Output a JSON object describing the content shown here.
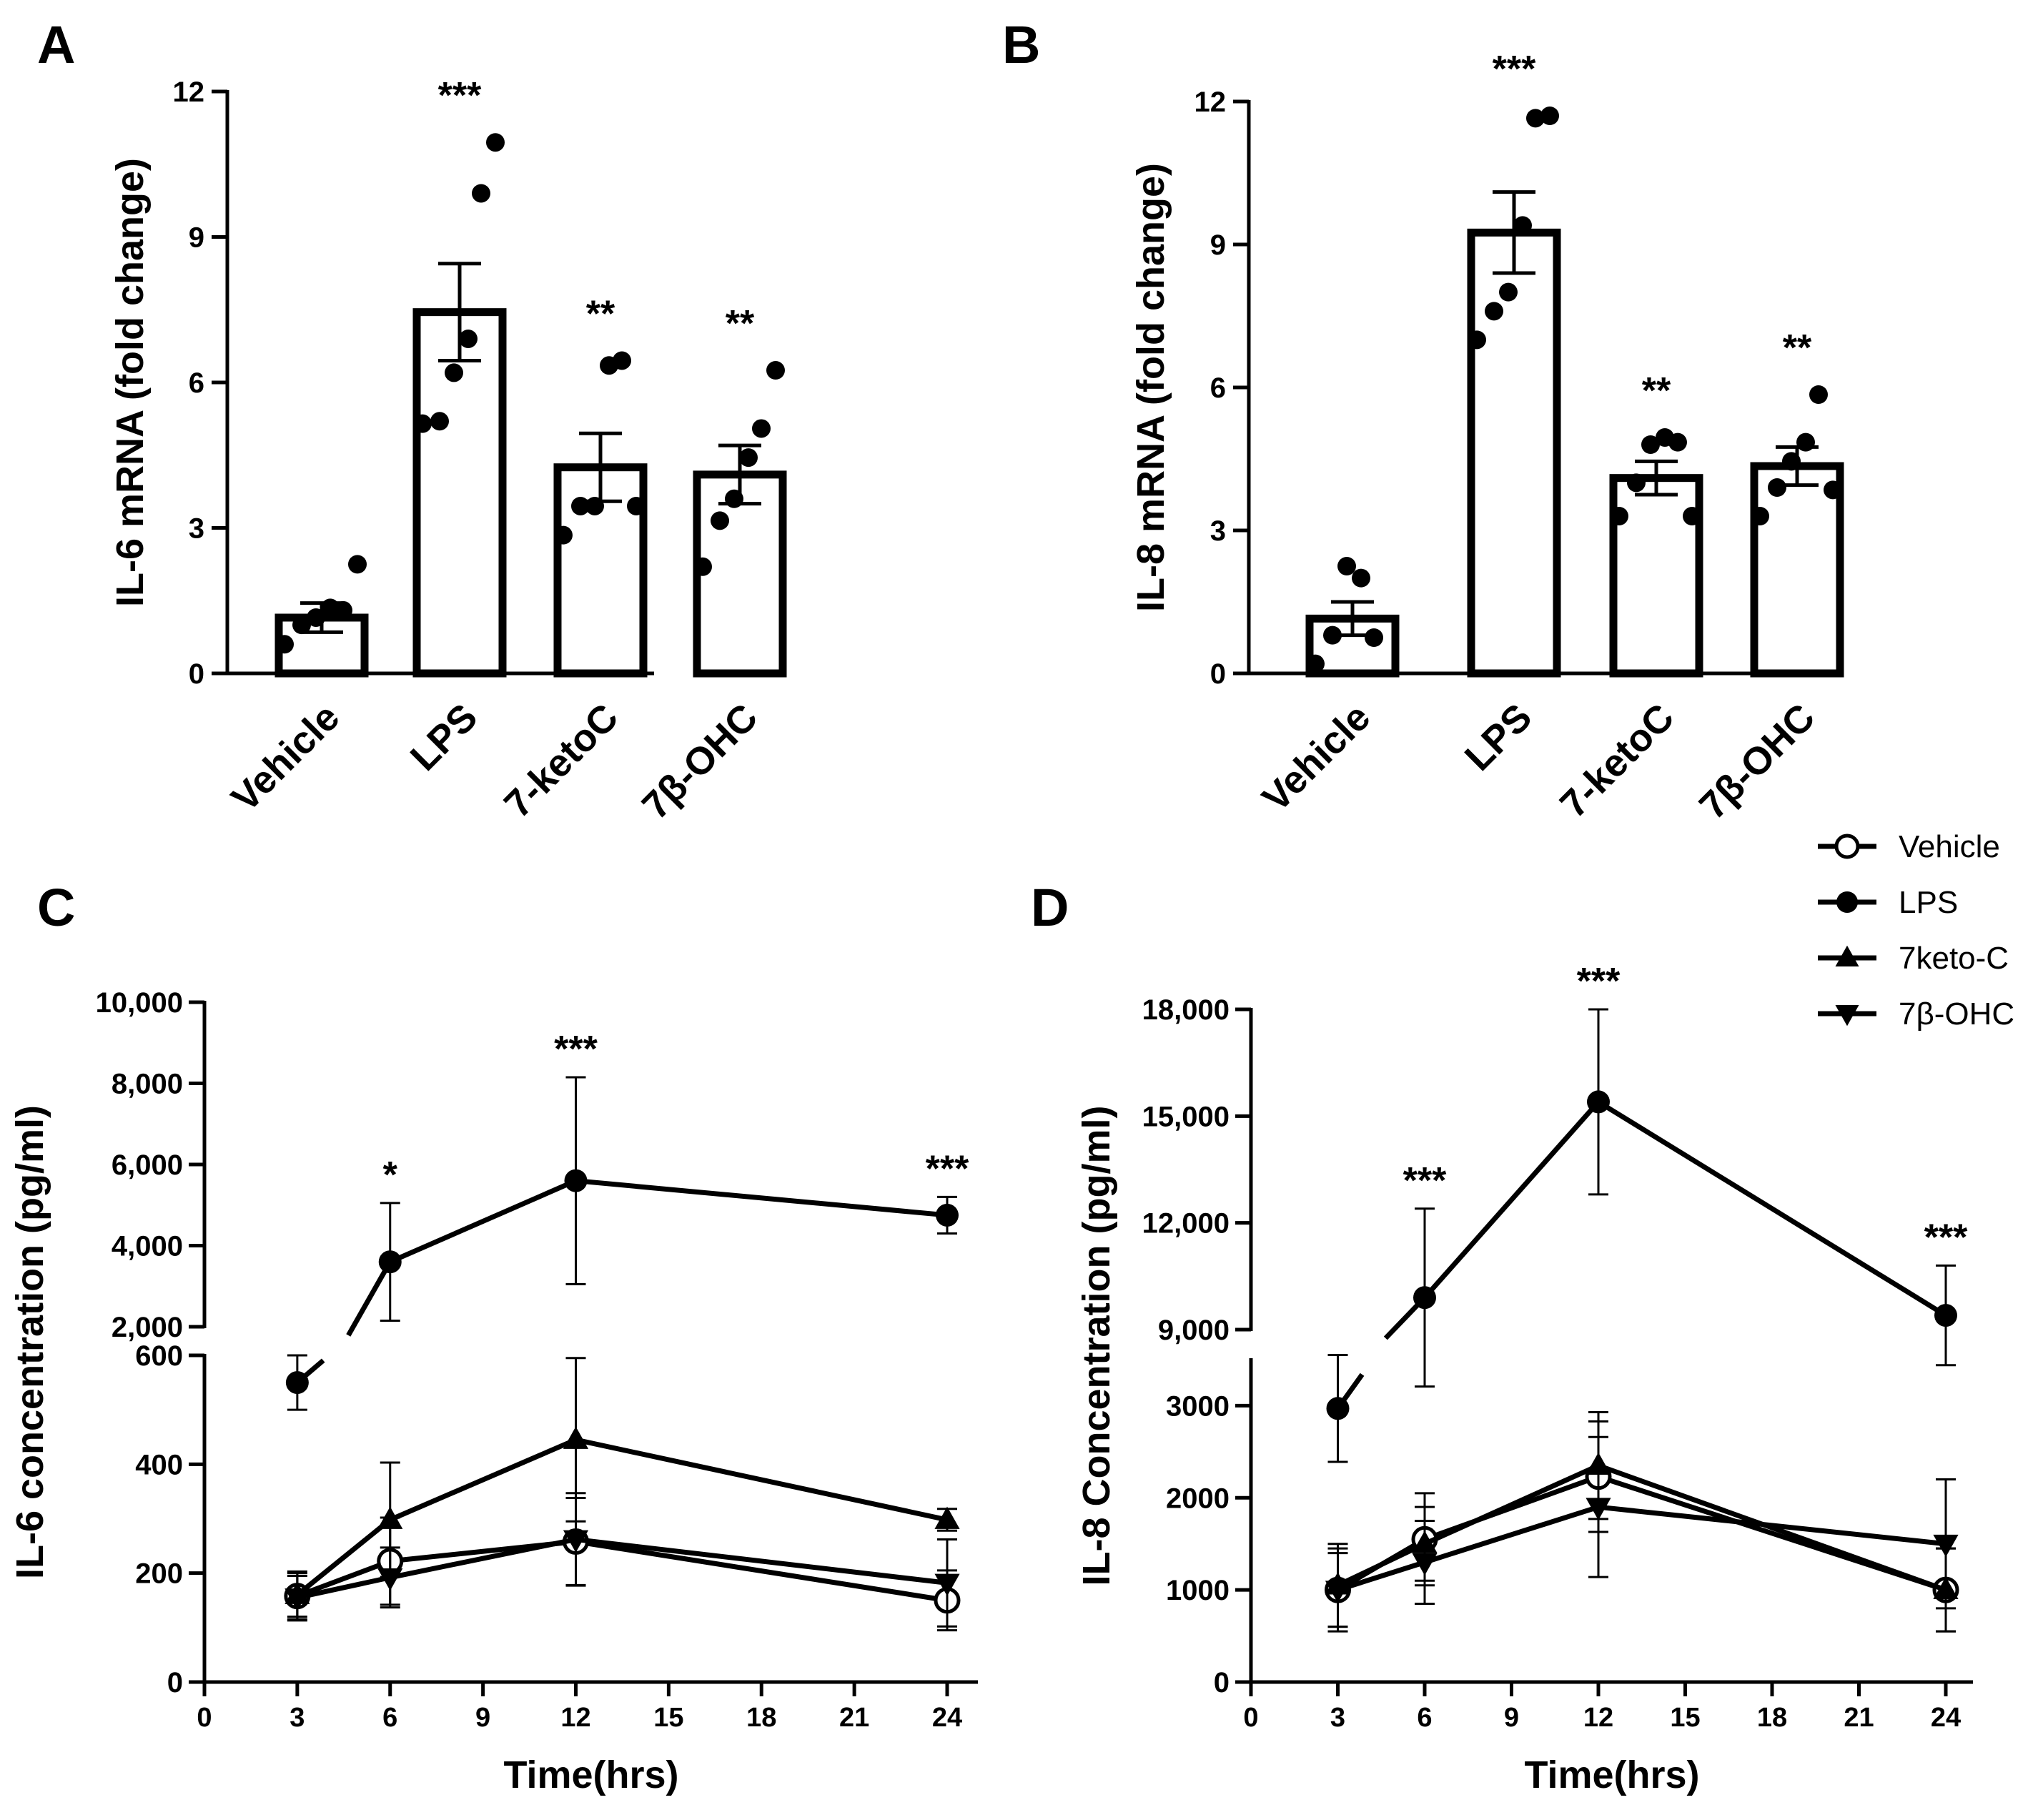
{
  "chart_data": [
    {
      "panel": "A",
      "type": "bar",
      "ylabel": "IL-6 mRNA (fold change)",
      "ylim": [
        0,
        12
      ],
      "yticks": [
        "0",
        "3",
        "6",
        "9",
        "12"
      ],
      "categories": [
        "Vehicle",
        "LPS",
        "7-ketoC",
        "7β-OHC"
      ],
      "values": [
        1.15,
        7.45,
        4.25,
        4.1
      ],
      "sem": [
        0.3,
        1.0,
        0.7,
        0.6
      ],
      "significance": [
        "",
        "***",
        "**",
        "**"
      ],
      "points": [
        [
          0.6,
          1.0,
          1.15,
          1.35,
          1.3,
          2.25
        ],
        [
          5.15,
          5.2,
          6.2,
          6.9,
          9.9,
          10.95
        ],
        [
          2.85,
          3.45,
          3.45,
          6.35,
          6.45,
          3.45
        ],
        [
          2.2,
          3.15,
          3.6,
          4.45,
          5.05,
          6.25
        ]
      ]
    },
    {
      "panel": "B",
      "type": "bar",
      "ylabel": "IL-8 mRNA (fold change)",
      "ylim": [
        0,
        12
      ],
      "yticks": [
        "0",
        "3",
        "6",
        "9",
        "12"
      ],
      "categories": [
        "Vehicle",
        "LPS",
        "7-ketoC",
        "7β-OHC"
      ],
      "values": [
        1.15,
        9.25,
        4.1,
        4.35
      ],
      "sem": [
        0.35,
        0.85,
        0.35,
        0.4
      ],
      "significance": [
        "",
        "***",
        "**",
        "**"
      ],
      "points": [
        [
          0.2,
          0.8,
          2.25,
          2.0,
          0.75
        ],
        [
          7.0,
          7.6,
          8.0,
          9.4,
          11.65,
          11.7
        ],
        [
          3.3,
          4.0,
          4.8,
          4.95,
          4.85,
          3.3
        ],
        [
          3.3,
          3.9,
          4.45,
          4.85,
          5.85,
          3.85
        ]
      ]
    },
    {
      "panel": "C",
      "type": "line",
      "ylabel": "IL-6 concentration (pg/ml)",
      "xlabel": "Time(hrs)",
      "x": [
        3,
        6,
        12,
        24
      ],
      "xlim": [
        0,
        24
      ],
      "xticks": [
        "0",
        "3",
        "6",
        "9",
        "12",
        "15",
        "18",
        "21",
        "24"
      ],
      "y_break": true,
      "upper_ylim": [
        2000,
        10000
      ],
      "upper_yticks": [
        "2,000",
        "4,000",
        "6,000",
        "8,000",
        "10,000"
      ],
      "lower_ylim": [
        0,
        600
      ],
      "lower_yticks": [
        "0",
        "200",
        "400",
        "600"
      ],
      "series": [
        {
          "name": "Vehicle",
          "marker": "open-circle",
          "values": [
            158,
            222,
            258,
            150
          ],
          "err": [
            45,
            80,
            80,
            55
          ]
        },
        {
          "name": "LPS",
          "marker": "filled-circle",
          "values": [
            550,
            3600,
            5600,
            4750
          ],
          "err": [
            50,
            1450,
            2550,
            450
          ]
        },
        {
          "name": "7keto-C",
          "marker": "up-triangle",
          "values": [
            160,
            298,
            445,
            298
          ],
          "err": [
            40,
            105,
            150,
            20
          ]
        },
        {
          "name": "7β-OHC",
          "marker": "down-triangle",
          "values": [
            155,
            192,
            262,
            182
          ],
          "err": [
            40,
            55,
            85,
            80
          ]
        }
      ],
      "significance": [
        "",
        "*",
        "***",
        "***"
      ]
    },
    {
      "panel": "D",
      "type": "line",
      "ylabel": "IL-8 Concentration (pg/ml)",
      "xlabel": "Time(hrs)",
      "x": [
        3,
        6,
        12,
        24
      ],
      "xlim": [
        0,
        24
      ],
      "xticks": [
        "0",
        "3",
        "6",
        "9",
        "12",
        "15",
        "18",
        "21",
        "24"
      ],
      "y_break": true,
      "upper_ylim": [
        9000,
        18000
      ],
      "upper_yticks": [
        "9,000",
        "12,000",
        "15,000",
        "18,000"
      ],
      "lower_ylim": [
        0,
        3500
      ],
      "lower_yticks": [
        "0",
        "1000",
        "2000",
        "3000"
      ],
      "series": [
        {
          "name": "Vehicle",
          "marker": "open-circle",
          "values": [
            1000,
            1550,
            2230,
            1000
          ],
          "err": [
            450,
            500,
            600,
            450
          ]
        },
        {
          "name": "LPS",
          "marker": "filled-circle",
          "values": [
            2970,
            9900,
            15400,
            9400
          ],
          "err": [
            580,
            2500,
            2600,
            1400
          ]
        },
        {
          "name": "7keto-C",
          "marker": "up-triangle",
          "values": [
            1050,
            1500,
            2350,
            1000
          ],
          "err": [
            450,
            400,
            580,
            450
          ]
        },
        {
          "name": "7β-OHC",
          "marker": "down-triangle",
          "values": [
            1000,
            1300,
            1900,
            1500
          ],
          "err": [
            400,
            450,
            760,
            700
          ]
        }
      ],
      "significance": [
        "",
        "***",
        "***",
        "***"
      ]
    }
  ],
  "panel_labels": [
    "A",
    "B",
    "C",
    "D"
  ],
  "legend": {
    "position": "top-right",
    "entries": [
      {
        "label": "Vehicle",
        "marker": "open-circle"
      },
      {
        "label": "LPS",
        "marker": "filled-circle"
      },
      {
        "label": "7keto-C",
        "marker": "up-triangle"
      },
      {
        "label": "7β-OHC",
        "marker": "down-triangle"
      }
    ]
  },
  "colors": {
    "ink": "#000000",
    "background": "#ffffff"
  }
}
